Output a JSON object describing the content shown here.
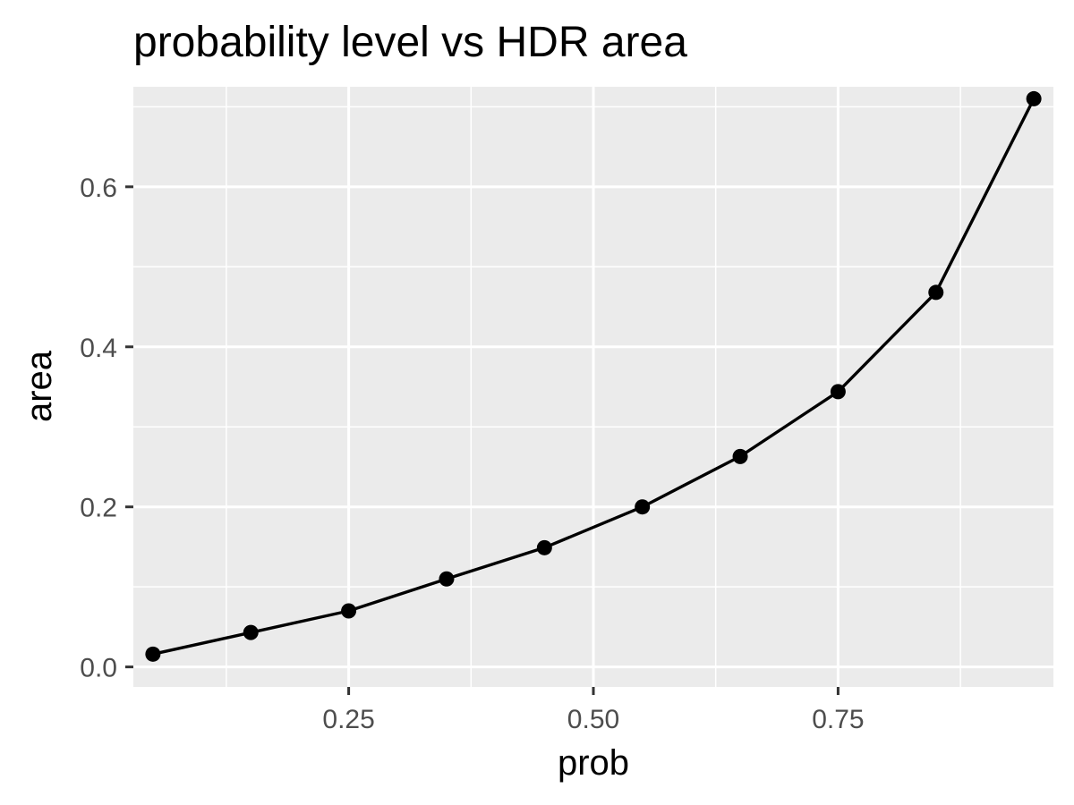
{
  "chart_data": {
    "type": "line",
    "title": "probability level vs HDR area",
    "xlabel": "prob",
    "ylabel": "area",
    "xlim": [
      0.03,
      0.97
    ],
    "ylim": [
      -0.025,
      0.725
    ],
    "x_ticks": [
      0.25,
      0.5,
      0.75
    ],
    "x_tick_labels": [
      "0.25",
      "0.50",
      "0.75"
    ],
    "x_minor_ticks": [
      0.125,
      0.375,
      0.625,
      0.875
    ],
    "y_ticks": [
      0.0,
      0.2,
      0.4,
      0.6
    ],
    "y_tick_labels": [
      "0.0",
      "0.2",
      "0.4",
      "0.6"
    ],
    "y_minor_ticks": [
      0.1,
      0.3,
      0.5,
      0.7
    ],
    "grid": true,
    "legend": "none",
    "colors": {
      "panel_background": "#ebebeb",
      "grid": "#ffffff",
      "line": "#000000",
      "point": "#000000",
      "tick_label": "#4d4d4d"
    },
    "series": [
      {
        "x": [
          0.05,
          0.15,
          0.25,
          0.35,
          0.45,
          0.55,
          0.65,
          0.75,
          0.85,
          0.95
        ],
        "values": [
          0.016,
          0.043,
          0.07,
          0.11,
          0.149,
          0.2,
          0.263,
          0.344,
          0.468,
          0.71
        ]
      }
    ]
  }
}
